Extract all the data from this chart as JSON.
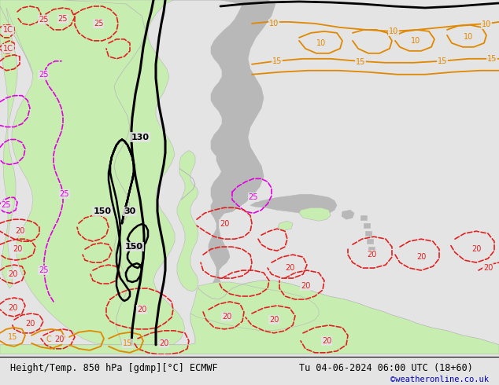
{
  "title_left": "Height/Temp. 850 hPa [gdmp][°C] ECMWF",
  "title_right": "Tu 04-06-2024 06:00 UTC (18+60)",
  "credit": "©weatheronline.co.uk",
  "bg_color": "#e4e4e4",
  "land_green_color": "#c8edb0",
  "land_gray_color": "#b8b8b8",
  "sea_color": "#e4e4e4",
  "red": "#e02020",
  "magenta": "#e000e0",
  "orange": "#e08800",
  "black": "#000000",
  "figsize": [
    6.34,
    4.9
  ],
  "dpi": 100
}
